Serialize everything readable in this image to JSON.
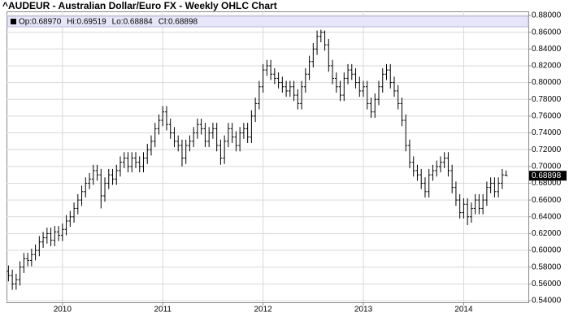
{
  "chart_data": {
    "type": "ohlc",
    "title": "^AUDEUR - Australian Dollar/Euro FX - Weekly OHLC Chart",
    "legend_prefixes": [
      "Op:",
      "Hi:",
      "Lo:",
      "Cl:"
    ],
    "last_value_labels": [
      "0.68970",
      "0.69519",
      "0.68884",
      "0.68898"
    ],
    "color": "#000000",
    "grid": true,
    "ylim": [
      0.54,
      0.88
    ],
    "yticks": [
      {
        "value": 0.54,
        "label": "0.54000"
      },
      {
        "value": 0.56,
        "label": "0.56000"
      },
      {
        "value": 0.58,
        "label": "0.58000"
      },
      {
        "value": 0.6,
        "label": "0.60000"
      },
      {
        "value": 0.62,
        "label": "0.62000"
      },
      {
        "value": 0.64,
        "label": "0.64000"
      },
      {
        "value": 0.66,
        "label": "0.66000"
      },
      {
        "value": 0.68,
        "label": "0.68000"
      },
      {
        "value": 0.7,
        "label": "0.70000"
      },
      {
        "value": 0.72,
        "label": "0.72000"
      },
      {
        "value": 0.74,
        "label": "0.74000"
      },
      {
        "value": 0.76,
        "label": "0.76000"
      },
      {
        "value": 0.78,
        "label": "0.78000"
      },
      {
        "value": 0.8,
        "label": "0.80000"
      },
      {
        "value": 0.82,
        "label": "0.82000"
      },
      {
        "value": 0.84,
        "label": "0.84000"
      },
      {
        "value": 0.86,
        "label": "0.86000"
      },
      {
        "value": 0.88,
        "label": "0.88000"
      }
    ],
    "categories": [
      null,
      null,
      null,
      null,
      null,
      null,
      null,
      null,
      null,
      null,
      null,
      null,
      null,
      null,
      "2010",
      null,
      null,
      null,
      null,
      null,
      null,
      null,
      null,
      null,
      null,
      null,
      null,
      null,
      null,
      null,
      null,
      null,
      null,
      null,
      null,
      null,
      null,
      null,
      null,
      null,
      "2011",
      null,
      null,
      null,
      null,
      null,
      null,
      null,
      null,
      null,
      null,
      null,
      null,
      null,
      null,
      null,
      null,
      null,
      null,
      null,
      null,
      null,
      null,
      null,
      null,
      null,
      "2012",
      null,
      null,
      null,
      null,
      null,
      null,
      null,
      null,
      null,
      null,
      null,
      null,
      null,
      null,
      null,
      null,
      null,
      null,
      null,
      null,
      null,
      null,
      null,
      null,
      null,
      "2013",
      null,
      null,
      null,
      null,
      null,
      null,
      null,
      null,
      null,
      null,
      null,
      null,
      null,
      null,
      null,
      null,
      null,
      null,
      null,
      null,
      null,
      null,
      null,
      null,
      null,
      "2014",
      null,
      null,
      null,
      null,
      null,
      null,
      null,
      null,
      null,
      null,
      null
    ],
    "open": [
      0.575,
      0.57,
      0.56,
      0.565,
      0.58,
      0.59,
      0.588,
      0.595,
      0.6,
      0.61,
      0.615,
      0.62,
      0.612,
      0.622,
      0.618,
      0.625,
      0.635,
      0.64,
      0.65,
      0.66,
      0.67,
      0.68,
      0.685,
      0.695,
      0.69,
      0.665,
      0.68,
      0.69,
      0.685,
      0.695,
      0.705,
      0.71,
      0.7,
      0.71,
      0.705,
      0.7,
      0.71,
      0.72,
      0.73,
      0.745,
      0.755,
      0.765,
      0.75,
      0.74,
      0.73,
      0.725,
      0.71,
      0.725,
      0.73,
      0.74,
      0.75,
      0.745,
      0.73,
      0.74,
      0.745,
      0.725,
      0.71,
      0.73,
      0.745,
      0.735,
      0.725,
      0.74,
      0.745,
      0.735,
      0.76,
      0.775,
      0.795,
      0.815,
      0.82,
      0.81,
      0.805,
      0.8,
      0.795,
      0.79,
      0.795,
      0.785,
      0.775,
      0.795,
      0.81,
      0.825,
      0.84,
      0.855,
      0.86,
      0.845,
      0.82,
      0.805,
      0.795,
      0.785,
      0.805,
      0.815,
      0.81,
      0.8,
      0.79,
      0.795,
      0.775,
      0.765,
      0.78,
      0.795,
      0.81,
      0.815,
      0.8,
      0.79,
      0.775,
      0.755,
      0.725,
      0.705,
      0.695,
      0.69,
      0.68,
      0.67,
      0.69,
      0.695,
      0.7,
      0.705,
      0.71,
      0.695,
      0.675,
      0.66,
      0.645,
      0.655,
      0.64,
      0.65,
      0.66,
      0.65,
      0.66,
      0.675,
      0.68,
      0.67,
      0.68,
      0.6897
    ],
    "high": [
      0.582,
      0.577,
      0.572,
      0.587,
      0.597,
      0.597,
      0.602,
      0.607,
      0.617,
      0.622,
      0.627,
      0.627,
      0.629,
      0.629,
      0.632,
      0.642,
      0.647,
      0.657,
      0.667,
      0.677,
      0.687,
      0.692,
      0.702,
      0.702,
      0.697,
      0.687,
      0.697,
      0.697,
      0.702,
      0.712,
      0.717,
      0.717,
      0.717,
      0.717,
      0.712,
      0.717,
      0.727,
      0.737,
      0.752,
      0.762,
      0.772,
      0.772,
      0.757,
      0.747,
      0.737,
      0.732,
      0.732,
      0.737,
      0.747,
      0.757,
      0.757,
      0.752,
      0.747,
      0.752,
      0.752,
      0.732,
      0.737,
      0.752,
      0.752,
      0.742,
      0.747,
      0.752,
      0.752,
      0.767,
      0.782,
      0.802,
      0.822,
      0.827,
      0.827,
      0.817,
      0.812,
      0.807,
      0.802,
      0.802,
      0.802,
      0.792,
      0.802,
      0.817,
      0.832,
      0.847,
      0.862,
      0.863,
      0.862,
      0.852,
      0.827,
      0.812,
      0.802,
      0.812,
      0.822,
      0.822,
      0.817,
      0.807,
      0.802,
      0.802,
      0.782,
      0.787,
      0.802,
      0.817,
      0.822,
      0.822,
      0.807,
      0.797,
      0.782,
      0.762,
      0.732,
      0.712,
      0.702,
      0.697,
      0.687,
      0.697,
      0.702,
      0.707,
      0.712,
      0.717,
      0.717,
      0.702,
      0.682,
      0.667,
      0.662,
      0.662,
      0.657,
      0.667,
      0.667,
      0.667,
      0.682,
      0.687,
      0.687,
      0.687,
      0.697,
      0.69519
    ],
    "low": [
      0.563,
      0.553,
      0.553,
      0.558,
      0.573,
      0.581,
      0.581,
      0.588,
      0.593,
      0.603,
      0.608,
      0.605,
      0.605,
      0.611,
      0.611,
      0.618,
      0.628,
      0.633,
      0.643,
      0.653,
      0.663,
      0.673,
      0.678,
      0.683,
      0.65,
      0.658,
      0.673,
      0.678,
      0.678,
      0.688,
      0.698,
      0.693,
      0.693,
      0.698,
      0.693,
      0.693,
      0.703,
      0.713,
      0.723,
      0.738,
      0.748,
      0.743,
      0.733,
      0.723,
      0.718,
      0.7,
      0.703,
      0.718,
      0.723,
      0.733,
      0.738,
      0.723,
      0.723,
      0.733,
      0.718,
      0.702,
      0.703,
      0.723,
      0.728,
      0.718,
      0.718,
      0.733,
      0.728,
      0.728,
      0.753,
      0.768,
      0.788,
      0.808,
      0.803,
      0.798,
      0.793,
      0.788,
      0.783,
      0.783,
      0.778,
      0.768,
      0.768,
      0.788,
      0.803,
      0.818,
      0.833,
      0.848,
      0.838,
      0.813,
      0.798,
      0.788,
      0.778,
      0.778,
      0.798,
      0.803,
      0.793,
      0.783,
      0.783,
      0.768,
      0.758,
      0.758,
      0.773,
      0.788,
      0.803,
      0.793,
      0.783,
      0.768,
      0.748,
      0.718,
      0.698,
      0.688,
      0.683,
      0.673,
      0.663,
      0.663,
      0.683,
      0.688,
      0.693,
      0.698,
      0.688,
      0.668,
      0.653,
      0.638,
      0.638,
      0.63,
      0.633,
      0.643,
      0.643,
      0.643,
      0.653,
      0.668,
      0.663,
      0.663,
      0.673,
      0.68884
    ],
    "close": [
      0.57,
      0.56,
      0.565,
      0.58,
      0.59,
      0.588,
      0.595,
      0.6,
      0.61,
      0.615,
      0.62,
      0.612,
      0.622,
      0.618,
      0.625,
      0.635,
      0.64,
      0.65,
      0.66,
      0.67,
      0.68,
      0.685,
      0.695,
      0.69,
      0.665,
      0.68,
      0.69,
      0.685,
      0.695,
      0.705,
      0.71,
      0.7,
      0.71,
      0.705,
      0.7,
      0.71,
      0.72,
      0.73,
      0.745,
      0.755,
      0.765,
      0.75,
      0.74,
      0.73,
      0.725,
      0.71,
      0.725,
      0.73,
      0.74,
      0.75,
      0.745,
      0.73,
      0.74,
      0.745,
      0.725,
      0.71,
      0.73,
      0.745,
      0.735,
      0.725,
      0.74,
      0.745,
      0.735,
      0.76,
      0.775,
      0.795,
      0.815,
      0.82,
      0.81,
      0.805,
      0.8,
      0.795,
      0.79,
      0.795,
      0.785,
      0.775,
      0.795,
      0.81,
      0.825,
      0.84,
      0.855,
      0.86,
      0.845,
      0.82,
      0.805,
      0.795,
      0.785,
      0.805,
      0.815,
      0.81,
      0.8,
      0.79,
      0.795,
      0.775,
      0.765,
      0.78,
      0.795,
      0.81,
      0.815,
      0.8,
      0.79,
      0.775,
      0.755,
      0.725,
      0.705,
      0.695,
      0.69,
      0.68,
      0.67,
      0.69,
      0.695,
      0.7,
      0.705,
      0.71,
      0.695,
      0.675,
      0.66,
      0.645,
      0.655,
      0.64,
      0.65,
      0.66,
      0.65,
      0.66,
      0.675,
      0.68,
      0.67,
      0.68,
      0.69,
      0.68898
    ]
  }
}
